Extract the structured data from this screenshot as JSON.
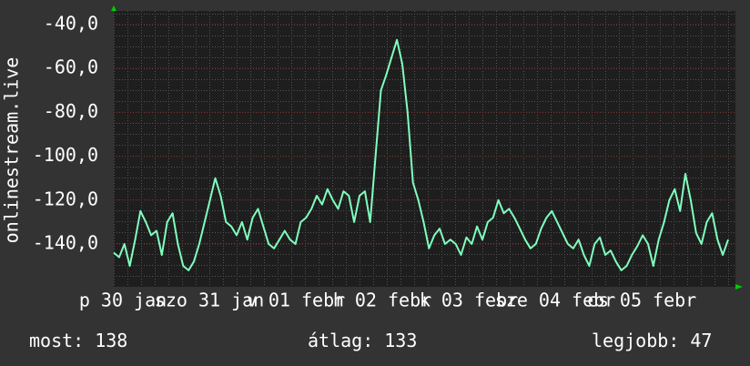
{
  "chart_data": {
    "type": "line",
    "y_label": "onlinestream.live",
    "color": "#80ffbf",
    "ylim": [
      -159.5,
      -33.8
    ],
    "yticks": [
      {
        "value": -40,
        "label": "-40,0"
      },
      {
        "value": -60,
        "label": "-60,0"
      },
      {
        "value": -80,
        "label": "-80,0"
      },
      {
        "value": -100,
        "label": "-100,0"
      },
      {
        "value": -120,
        "label": "-120,0"
      },
      {
        "value": -140,
        "label": "-140,0"
      }
    ],
    "grid": true,
    "x_labels": [
      "p 30 jan",
      "szo 31 jan",
      "v 01 febr",
      "h 02 febr",
      "k 03 febr",
      "sze 04 febr",
      "cs 05 febr"
    ],
    "values": [
      -144,
      -146,
      -140,
      -150,
      -138,
      -125,
      -130,
      -136,
      -134,
      -145,
      -130,
      -126,
      -140,
      -150,
      -152,
      -148,
      -140,
      -130,
      -120,
      -110,
      -118,
      -130,
      -132,
      -136,
      -130,
      -138,
      -128,
      -124,
      -132,
      -140,
      -142,
      -138,
      -134,
      -138,
      -140,
      -130,
      -128,
      -124,
      -118,
      -122,
      -115,
      -120,
      -124,
      -116,
      -118,
      -130,
      -118,
      -116,
      -130,
      -100,
      -70,
      -63,
      -55,
      -47,
      -58,
      -80,
      -112,
      -120,
      -130,
      -142,
      -136,
      -133,
      -140,
      -138,
      -140,
      -145,
      -137,
      -140,
      -132,
      -138,
      -130,
      -128,
      -120,
      -126,
      -124,
      -128,
      -133,
      -138,
      -142,
      -140,
      -133,
      -128,
      -125,
      -130,
      -135,
      -140,
      -142,
      -138,
      -145,
      -150,
      -140,
      -137,
      -145,
      -143,
      -148,
      -152,
      -150,
      -145,
      -141,
      -136,
      -140,
      -150,
      -138,
      -130,
      -120,
      -115,
      -125,
      -108,
      -120,
      -135,
      -140,
      -130,
      -126,
      -138,
      -145,
      -138
    ],
    "footer": [
      {
        "label": "most:",
        "value": 138
      },
      {
        "label": "átlag:",
        "value": 133
      },
      {
        "label": "legjobb:",
        "value": 47
      }
    ]
  }
}
